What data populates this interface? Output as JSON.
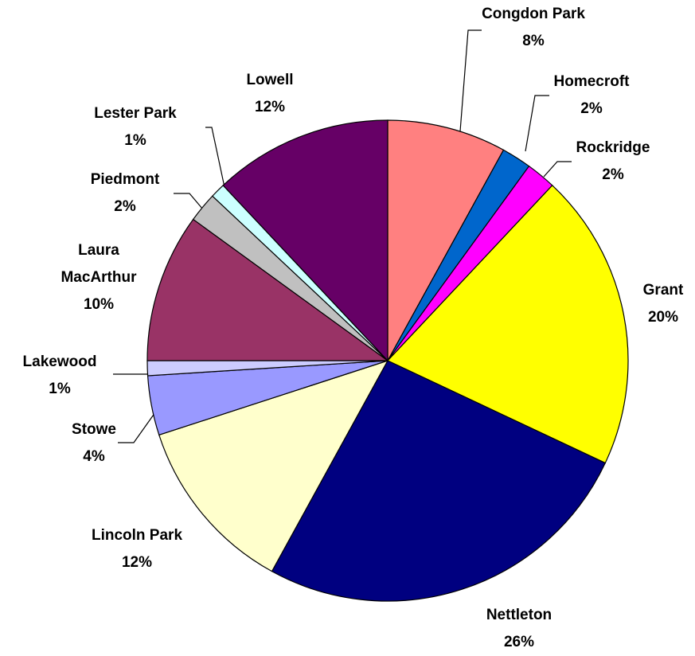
{
  "chart_data": {
    "type": "pie",
    "categories": [
      "Congdon Park",
      "Homecroft",
      "Rockridge",
      "Grant",
      "Nettleton",
      "Lincoln Park",
      "Stowe",
      "Lakewood",
      "Laura MacArthur",
      "Piedmont",
      "Lester Park",
      "Lowell"
    ],
    "values": [
      8,
      2,
      2,
      20,
      26,
      12,
      4,
      1,
      10,
      2,
      1,
      12
    ],
    "value_labels": [
      "8%",
      "2%",
      "2%",
      "20%",
      "26%",
      "12%",
      "4%",
      "1%",
      "10%",
      "2%",
      "1%",
      "12%"
    ],
    "colors": [
      "#ff8080",
      "#0066cc",
      "#ff00ff",
      "#ffff00",
      "#000080",
      "#ffffcc",
      "#9999ff",
      "#ccccff",
      "#993366",
      "#c0c0c0",
      "#ccffff",
      "#660066"
    ]
  }
}
